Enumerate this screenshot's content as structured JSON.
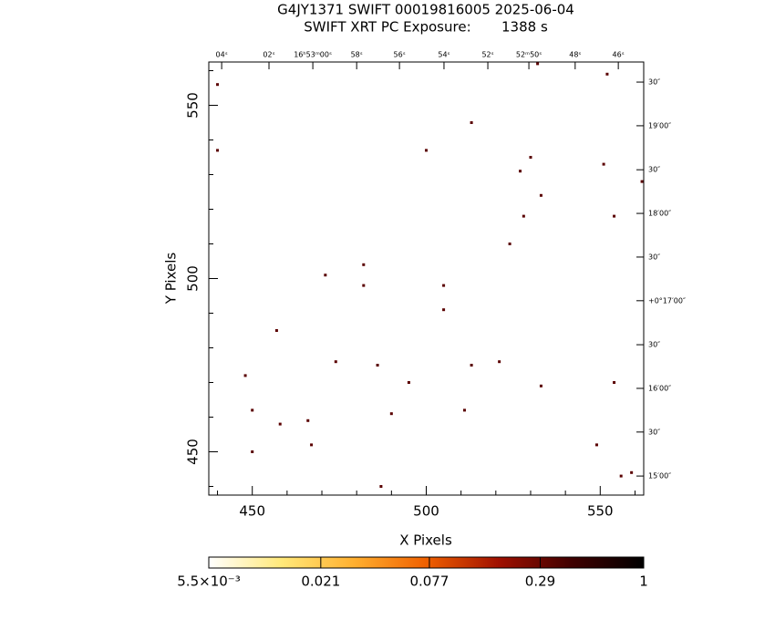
{
  "chart_data": {
    "type": "scatter",
    "title": "G4JY1371 SWIFT 00019816005 2025-06-04",
    "subtitle": "SWIFT XRT PC Exposure:       1388 s",
    "x_label": "X Pixels",
    "y_label": "Y Pixels",
    "xlim": [
      437.5,
      562.5
    ],
    "ylim": [
      437.5,
      562.5
    ],
    "xticks": [
      450,
      500,
      550
    ],
    "yticks": [
      450,
      500,
      550
    ],
    "xminorticks": [
      440,
      460,
      470,
      480,
      490,
      510,
      520,
      530,
      540,
      560
    ],
    "yminorticks": [
      440,
      460,
      470,
      480,
      490,
      510,
      520,
      530,
      540,
      560
    ],
    "top_ticks": [
      {
        "value": 441.2,
        "label": "04ˢ"
      },
      {
        "value": 454.8,
        "label": "02ˢ"
      },
      {
        "value": 467.4,
        "label": "16ʰ53ᵐ00ˢ"
      },
      {
        "value": 480.0,
        "label": "58ˢ"
      },
      {
        "value": 492.3,
        "label": "56ˢ"
      },
      {
        "value": 505.1,
        "label": "54ˢ"
      },
      {
        "value": 517.7,
        "label": "52ˢ"
      },
      {
        "value": 529.5,
        "label": "52ᵐ50ˢ"
      },
      {
        "value": 542.8,
        "label": "48ˢ"
      },
      {
        "value": 555.2,
        "label": "46ˢ"
      }
    ],
    "right_ticks": [
      {
        "value": 556.7,
        "label": "30″"
      },
      {
        "value": 544.1,
        "label": "19′00″"
      },
      {
        "value": 531.4,
        "label": "30″"
      },
      {
        "value": 518.8,
        "label": "18′00″"
      },
      {
        "value": 506.2,
        "label": "30″"
      },
      {
        "value": 493.6,
        "label": "+0°17′00″"
      },
      {
        "value": 480.9,
        "label": "30″"
      },
      {
        "value": 468.3,
        "label": "16′00″"
      },
      {
        "value": 455.7,
        "label": "30″"
      },
      {
        "value": 443.0,
        "label": "15′00″"
      }
    ],
    "color": "#5a0000",
    "x": [
      440,
      440,
      448,
      450,
      450,
      457,
      458,
      466,
      467,
      471,
      474,
      482,
      482,
      486,
      487,
      490,
      495,
      500,
      505,
      505,
      511,
      513,
      513,
      521,
      524,
      527,
      528,
      530,
      532,
      533,
      533,
      549,
      551,
      552,
      554,
      554,
      556,
      559,
      562
    ],
    "y": [
      556,
      537,
      472,
      462,
      450,
      485,
      458,
      459,
      452,
      501,
      476,
      504,
      498,
      475,
      440,
      461,
      470,
      537,
      498,
      491,
      462,
      545,
      475,
      476,
      510,
      531,
      518,
      535,
      562,
      524,
      469,
      452,
      533,
      559,
      470,
      518,
      443,
      444,
      528
    ],
    "colorbar": {
      "lim": [
        0.0055,
        1
      ],
      "log": true,
      "ticks": [
        {
          "value": 0.0055,
          "label": "5.5×10⁻³"
        },
        0.021,
        0.077,
        0.29,
        1
      ],
      "colors": [
        "#ffffff",
        "#ffe97a",
        "#ffb030",
        "#f06000",
        "#a01000",
        "#400000",
        "#000000"
      ]
    }
  }
}
